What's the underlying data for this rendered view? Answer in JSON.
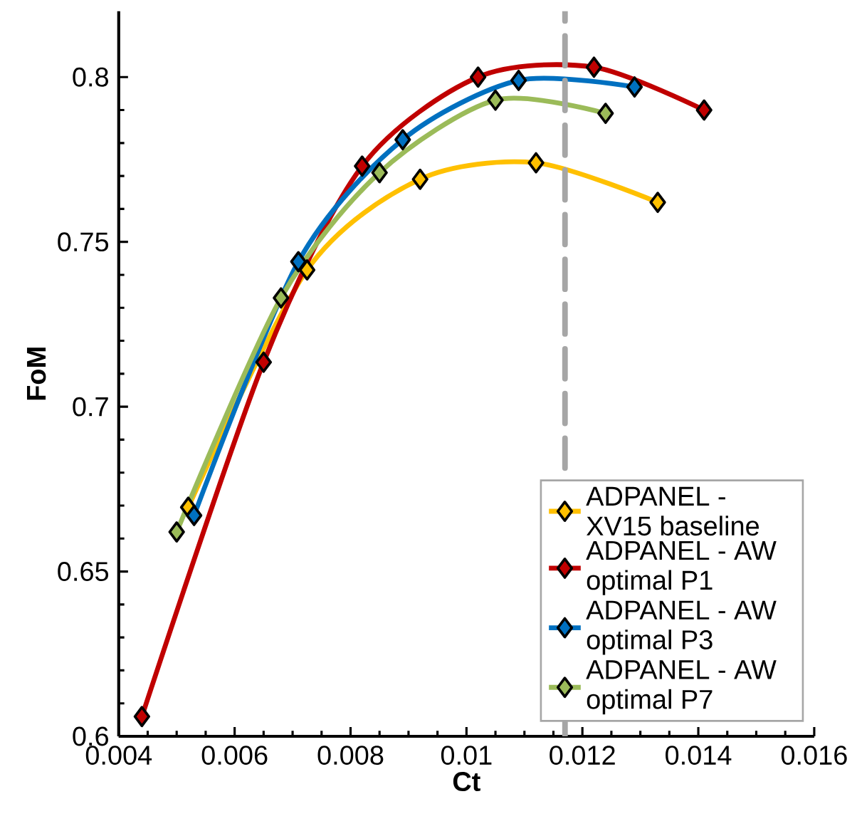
{
  "chart_data": {
    "type": "line",
    "xlabel": "Ct",
    "ylabel": "FoM",
    "xlim": [
      0.004,
      0.016
    ],
    "ylim": [
      0.6,
      0.82
    ],
    "xticks": [
      0.004,
      0.006,
      0.008,
      0.01,
      0.012,
      0.014,
      0.016
    ],
    "yticks": [
      0.6,
      0.65,
      0.7,
      0.75,
      0.8
    ],
    "marker": "diamond",
    "line_style": "solid",
    "grid": false,
    "legend": "bottom right",
    "ref_lines": [
      {
        "axis": "x",
        "value": 0.0117,
        "color": "#a6a6a6",
        "line_style": "dashed"
      }
    ],
    "series": [
      {
        "name": "ADPANEL - XV15 baseline",
        "color": "#ffc000",
        "x": [
          0.0052,
          0.00725,
          0.0092,
          0.0112,
          0.0133
        ],
        "values": [
          0.6695,
          0.7415,
          0.769,
          0.774,
          0.762
        ]
      },
      {
        "name": "ADPANEL - AW optimal P1",
        "color": "#c00000",
        "x": [
          0.0044,
          0.0065,
          0.0082,
          0.0102,
          0.0122,
          0.0141
        ],
        "values": [
          0.606,
          0.7135,
          0.773,
          0.8,
          0.803,
          0.79
        ]
      },
      {
        "name": "ADPANEL - AW optimal P3",
        "color": "#0070c0",
        "x": [
          0.0053,
          0.0071,
          0.0089,
          0.0109,
          0.0129
        ],
        "values": [
          0.667,
          0.744,
          0.781,
          0.799,
          0.797
        ]
      },
      {
        "name": "ADPANEL - AW optimal P7",
        "color": "#9bbb59",
        "x": [
          0.005,
          0.0068,
          0.0085,
          0.0105,
          0.0124
        ],
        "values": [
          0.662,
          0.733,
          0.771,
          0.793,
          0.789
        ]
      }
    ]
  }
}
